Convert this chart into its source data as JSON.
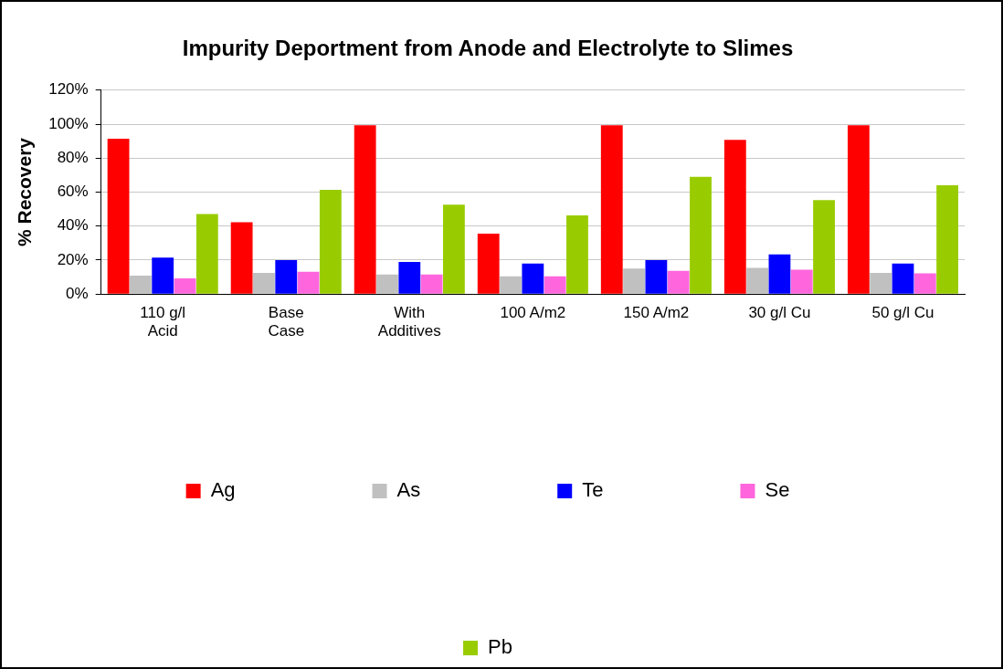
{
  "chart_data": {
    "type": "bar",
    "title": "Impurity Deportment from Anode and Electrolyte to Slimes",
    "ylabel": "% Recovery",
    "categories": [
      "110 g/l Acid",
      "Base Case",
      "With Additives",
      "100 A/m2",
      "150 A/m2",
      "30 g/l Cu",
      "50 g/l Cu"
    ],
    "series": [
      {
        "name": "Ag",
        "color": "#ff0000",
        "values": [
          91.4,
          42.3,
          99.3,
          35.6,
          99.4,
          90.7,
          99.4
        ]
      },
      {
        "name": "As",
        "color": "#c0c0c0",
        "values": [
          10.9,
          12.5,
          11.5,
          10.5,
          15.0,
          15.4,
          12.4
        ]
      },
      {
        "name": "Te",
        "color": "#0000ff",
        "values": [
          21.4,
          20.0,
          18.9,
          18.0,
          20.0,
          23.4,
          18.0
        ]
      },
      {
        "name": "Se",
        "color": "#ff66dd",
        "values": [
          9.2,
          13.2,
          11.5,
          10.5,
          13.7,
          14.4,
          12.2
        ]
      },
      {
        "name": "Pb",
        "color": "#99cc00",
        "values": [
          47.1,
          61.4,
          52.6,
          46.3,
          69.0,
          55.3,
          64.0
        ]
      }
    ],
    "ylim": [
      0,
      120
    ],
    "yticks": [
      {
        "value": 0,
        "label": "0%"
      },
      {
        "value": 20,
        "label": "20%"
      },
      {
        "value": 40,
        "label": "40%"
      },
      {
        "value": 60,
        "label": "60%"
      },
      {
        "value": 80,
        "label": "80%"
      },
      {
        "value": 100,
        "label": "100%"
      },
      {
        "value": 120,
        "label": "120%"
      }
    ],
    "grid": "y",
    "legend": "bottom"
  }
}
